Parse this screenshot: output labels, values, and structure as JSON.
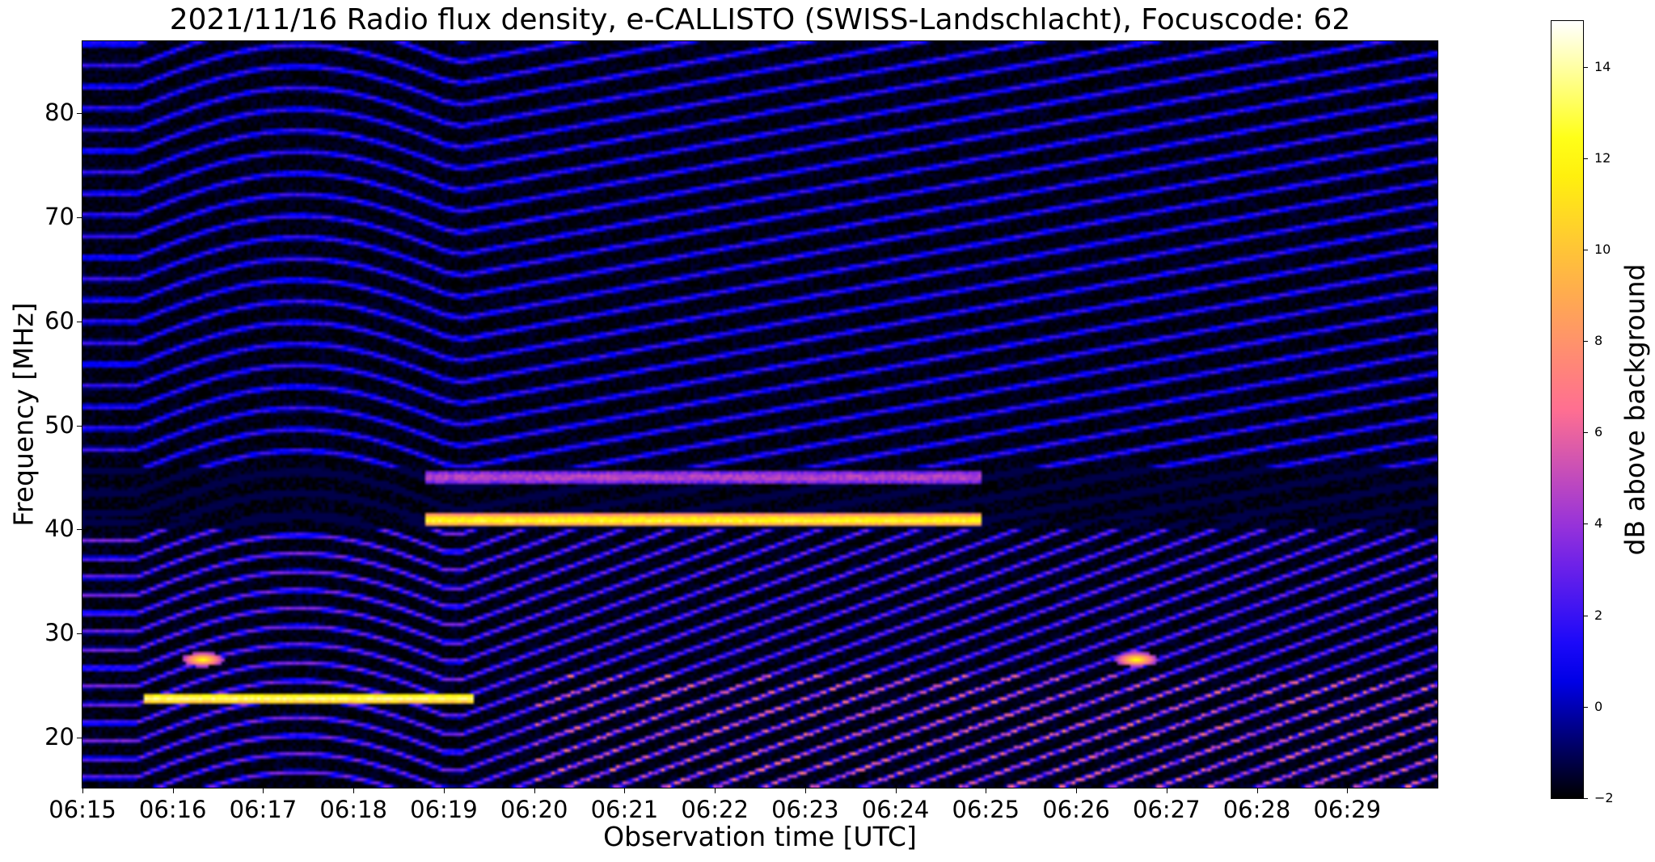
{
  "chart_data": {
    "type": "heatmap",
    "title": "2021/11/16  Radio flux density, e-CALLISTO (SWISS-Landschlacht), Focuscode: 62",
    "xlabel": "Observation time [UTC]",
    "ylabel": "Frequency [MHz]",
    "x_ticks": [
      "06:15",
      "06:16",
      "06:17",
      "06:18",
      "06:19",
      "06:20",
      "06:21",
      "06:22",
      "06:23",
      "06:24",
      "06:25",
      "06:26",
      "06:27",
      "06:28",
      "06:29"
    ],
    "xlim": [
      "06:15:00",
      "06:30:00"
    ],
    "y_ticks": [
      20,
      30,
      40,
      50,
      60,
      70,
      80
    ],
    "ylim": [
      15.2,
      86.9
    ],
    "colorbar": {
      "label": "dB above background",
      "ticks": [
        -2,
        0,
        2,
        4,
        6,
        8,
        10,
        12,
        14
      ],
      "range": [
        -2,
        15
      ],
      "colormap": "gnuplot2",
      "colors": [
        "#000000",
        "#0000ff",
        "#8a2be2",
        "#ff6f91",
        "#ffb347",
        "#ffff00",
        "#ffffff"
      ]
    },
    "features": [
      {
        "kind": "horizontal-band",
        "freq_mhz": 40.9,
        "start": "06:18:48",
        "end": "06:24:58",
        "peak_db": 14
      },
      {
        "kind": "horizontal-band",
        "freq_mhz": 45.0,
        "start": "06:18:48",
        "end": "06:24:58",
        "peak_db": 6
      },
      {
        "kind": "horizontal-band",
        "freq_mhz": 23.8,
        "start": "06:15:40",
        "end": "06:19:20",
        "peak_db": 15
      },
      {
        "kind": "blob",
        "freq_mhz": 27.5,
        "time": "06:16:20",
        "peak_db": 13
      },
      {
        "kind": "blob",
        "freq_mhz": 27.5,
        "time": "06:26:40",
        "peak_db": 13
      }
    ]
  }
}
